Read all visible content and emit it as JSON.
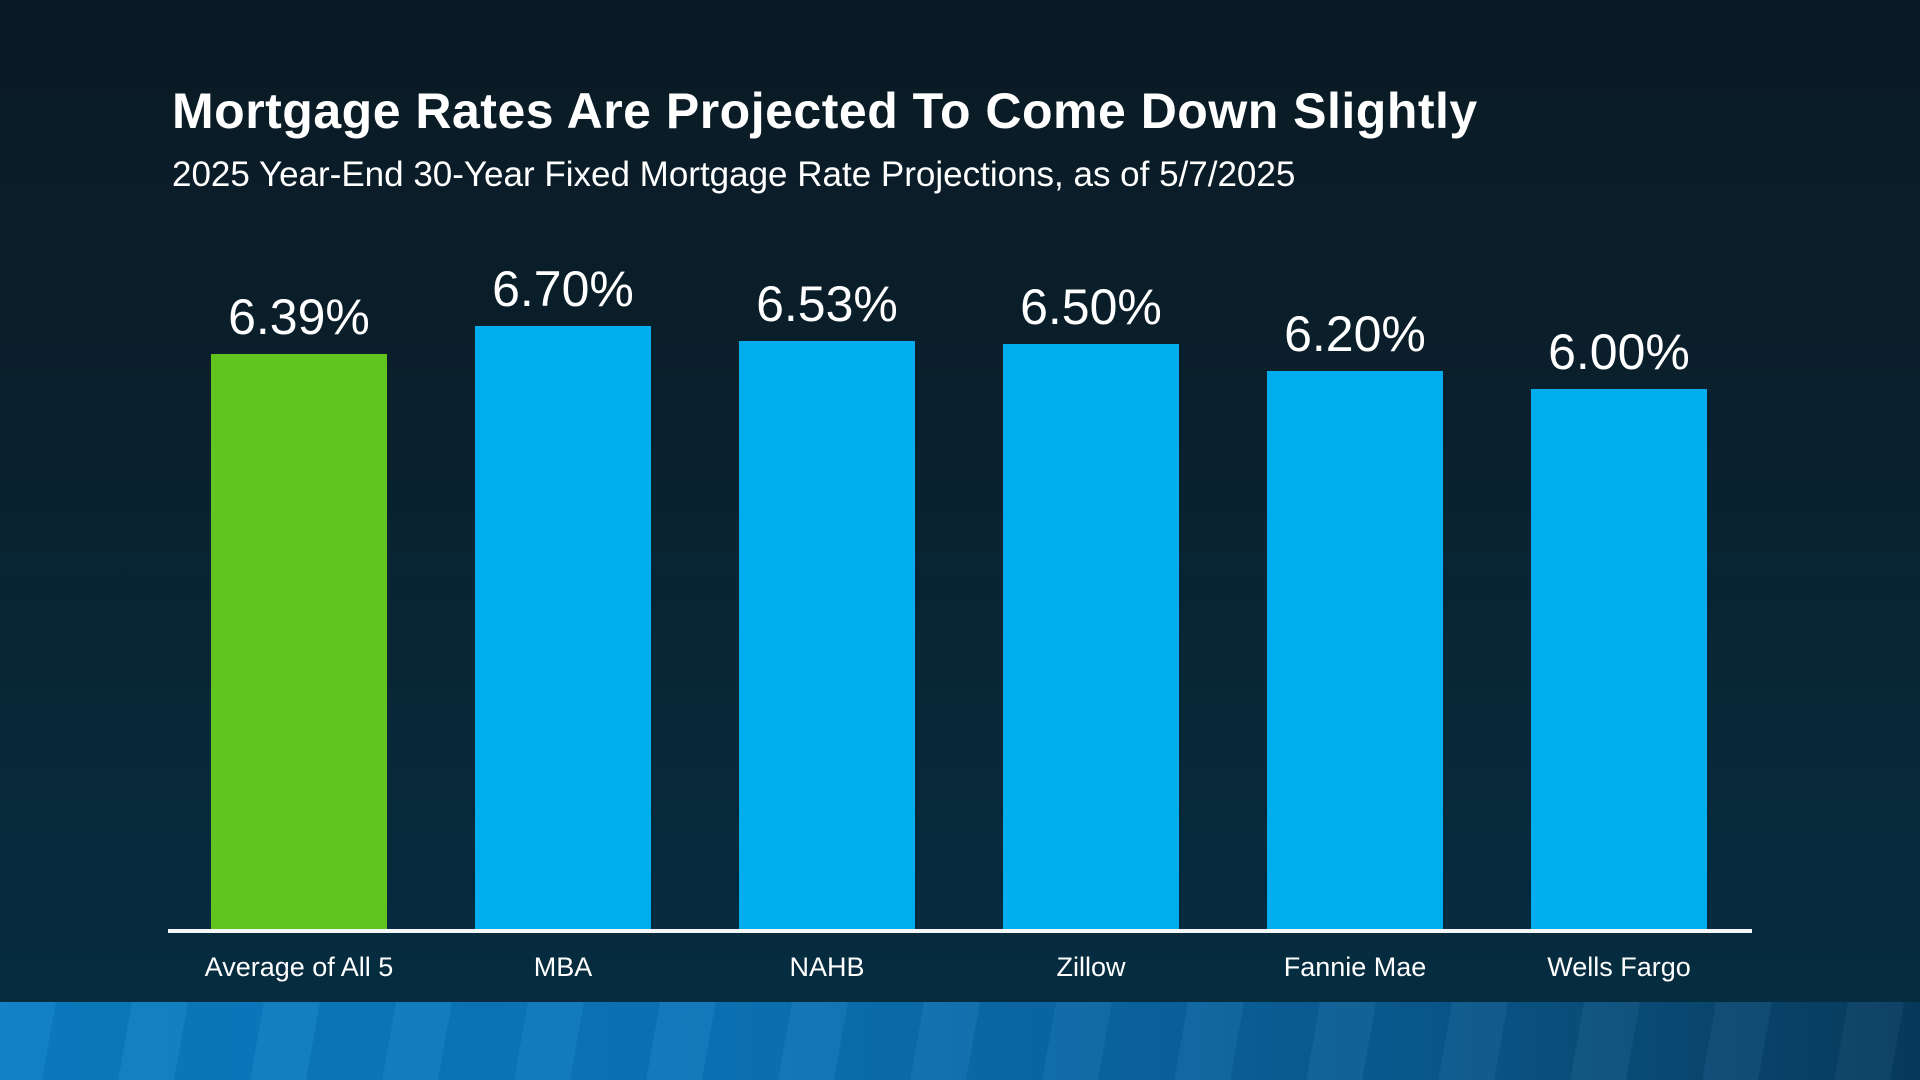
{
  "page": {
    "title": "Mortgage Rates Are Projected To Come Down Slightly",
    "subtitle": "2025 Year-End 30-Year Fixed Mortgage Rate Projections, as of 5/7/2025"
  },
  "chart_data": {
    "type": "bar",
    "title": "Mortgage Rates Are Projected To Come Down Slightly",
    "subtitle": "2025 Year-End 30-Year Fixed Mortgage Rate Projections, as of 5/7/2025",
    "categories": [
      "Average of All 5",
      "MBA",
      "NAHB",
      "Zillow",
      "Fannie Mae",
      "Wells Fargo"
    ],
    "values": [
      6.39,
      6.7,
      6.53,
      6.5,
      6.2,
      6.0
    ],
    "value_labels": [
      "6.39%",
      "6.70%",
      "6.53%",
      "6.50%",
      "6.20%",
      "6.00%"
    ],
    "bar_colors": [
      "#62c41e",
      "#00aeef",
      "#00aeef",
      "#00aeef",
      "#00aeef",
      "#00aeef"
    ],
    "xlabel": "",
    "ylabel": "",
    "ylim": [
      0,
      6.7
    ],
    "grid": false,
    "legend_position": "none",
    "value_label_position": "above-bar",
    "baseline_axis": "visible-white"
  },
  "colors": {
    "background_top": "#0a1a24",
    "background_bottom": "#052d42",
    "bar_highlight_green": "#62c41e",
    "bar_blue": "#00aeef",
    "baseline_white": "#f4f7f9",
    "footer_band_left": "#0a7dc2",
    "footer_band_right": "#063a5e",
    "text": "#ffffff"
  }
}
